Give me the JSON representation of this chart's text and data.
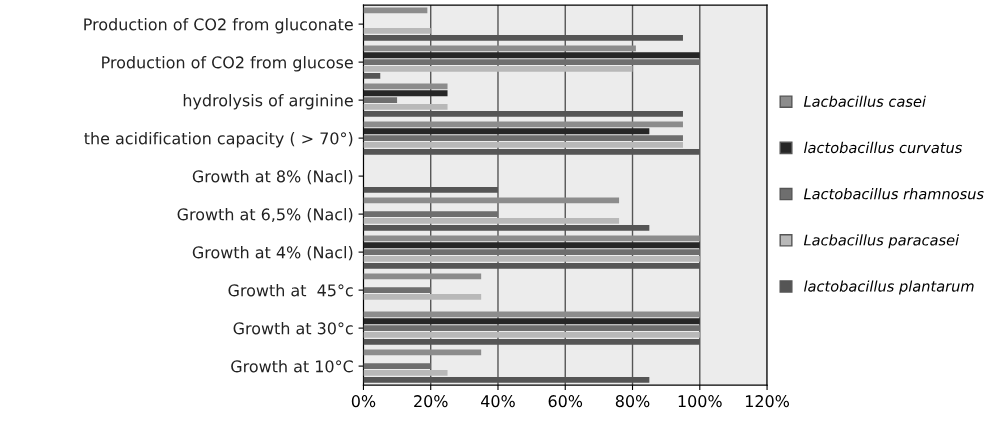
{
  "chart_data": {
    "type": "bar",
    "orientation": "horizontal",
    "categories": [
      "Production of CO2 from gluconate",
      "Production of CO2 from glucose",
      "hydrolysis of arginine",
      "the acidification capacity ( > 70°)",
      "Growth at 8% (Nacl)",
      "Growth at 6,5% (Nacl)",
      "Growth at 4% (Nacl)",
      "Growth at  45°c",
      "Growth at 30°c",
      "Growth at 10°C"
    ],
    "series": [
      {
        "name": "Lacbacillus casei",
        "color": "#8c8c8c",
        "values": [
          19,
          81,
          25,
          95,
          0,
          76,
          100,
          35,
          100,
          35
        ]
      },
      {
        "name": "lactobacillus curvatus",
        "color": "#262626",
        "values": [
          0,
          100,
          25,
          85,
          0,
          0,
          100,
          0,
          100,
          0
        ]
      },
      {
        "name": "Lactobacillus rhamnosus",
        "color": "#6e6e6e",
        "values": [
          0,
          100,
          10,
          95,
          0,
          40,
          100,
          20,
          100,
          20
        ]
      },
      {
        "name": "Lacbacillus paracasei",
        "color": "#b8b8b8",
        "values": [
          20,
          80,
          25,
          95,
          0,
          76,
          100,
          35,
          100,
          25
        ]
      },
      {
        "name": "lactobacillus plantarum",
        "color": "#555555",
        "values": [
          95,
          5,
          95,
          100,
          40,
          85,
          100,
          0,
          100,
          85
        ]
      }
    ],
    "xlim": [
      0,
      120
    ],
    "xticks": [
      {
        "value": 0,
        "label": "0%"
      },
      {
        "value": 20,
        "label": "20%"
      },
      {
        "value": 40,
        "label": "40%"
      },
      {
        "value": 60,
        "label": "60%"
      },
      {
        "value": 80,
        "label": "80%"
      },
      {
        "value": 100,
        "label": "100%"
      },
      {
        "value": 120,
        "label": "120%"
      }
    ],
    "grid": "x",
    "legend": "right"
  }
}
